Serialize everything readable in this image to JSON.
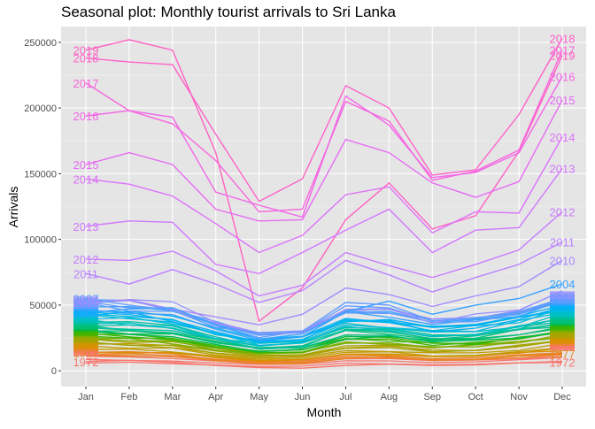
{
  "chart_data": {
    "type": "line",
    "title": "Seasonal plot: Monthly tourist arrivals to Sri Lanka",
    "xlabel": "Month",
    "ylabel": "Arrivals",
    "categories": [
      "Jan",
      "Feb",
      "Mar",
      "Apr",
      "May",
      "Jun",
      "Jul",
      "Aug",
      "Sep",
      "Oct",
      "Nov",
      "Dec"
    ],
    "ylim": [
      -12000,
      262000
    ],
    "yticks": [
      0,
      50000,
      100000,
      150000,
      200000,
      250000
    ],
    "ytick_labels": [
      "0",
      "50000",
      "100000",
      "150000",
      "200000",
      "250000"
    ],
    "background": "#E5E5E5",
    "grid": true,
    "labeled_series": [
      {
        "name": "2019",
        "color": "#FF61C3",
        "values": [
          244000,
          252000,
          244000,
          166000,
          37800,
          63000,
          115000,
          143000,
          108000,
          118000,
          167000,
          240000
        ]
      },
      {
        "name": "2018",
        "color": "#FF61C9",
        "values": [
          238000,
          235000,
          233000,
          180000,
          129000,
          146000,
          217000,
          200000,
          149000,
          153000,
          195000,
          253000
        ]
      },
      {
        "name": "2017",
        "color": "#F865DD",
        "values": [
          219000,
          198000,
          188000,
          160000,
          121000,
          123000,
          205000,
          190000,
          145000,
          152000,
          168000,
          244000
        ]
      },
      {
        "name": "2016",
        "color": "#F265E7",
        "values": [
          194000,
          198000,
          193000,
          136000,
          126000,
          117000,
          209000,
          187000,
          147000,
          151000,
          166000,
          224000
        ]
      },
      {
        "name": "2015",
        "color": "#E76BF3",
        "values": [
          157000,
          166000,
          157000,
          123000,
          114000,
          115000,
          176000,
          166000,
          143000,
          132000,
          144000,
          206000
        ]
      },
      {
        "name": "2014",
        "color": "#DC71FA",
        "values": [
          146000,
          142000,
          133000,
          112000,
          90000,
          103000,
          134000,
          140000,
          105000,
          121000,
          120000,
          178000
        ]
      },
      {
        "name": "2013",
        "color": "#D177FF",
        "values": [
          110000,
          114000,
          113000,
          81000,
          74000,
          90000,
          107000,
          123000,
          90000,
          107000,
          109000,
          154000
        ]
      },
      {
        "name": "2012",
        "color": "#C77CFF",
        "values": [
          85000,
          84000,
          91000,
          76000,
          57000,
          65000,
          90000,
          80000,
          71000,
          81000,
          92000,
          121000
        ]
      },
      {
        "name": "2011",
        "color": "#B983FF",
        "values": [
          74000,
          66000,
          77000,
          66000,
          52000,
          61000,
          84000,
          73000,
          60000,
          71000,
          81000,
          98000
        ]
      },
      {
        "name": "2010",
        "color": "#A58AFF",
        "values": [
          52000,
          54000,
          47000,
          41000,
          35000,
          43000,
          63000,
          58000,
          49000,
          57000,
          64000,
          84000
        ]
      },
      {
        "name": "2004",
        "color": "#35A2FF",
        "values": [
          44000,
          47000,
          48000,
          35000,
          24000,
          28000,
          45000,
          53000,
          43000,
          50000,
          55000,
          66000
        ]
      },
      {
        "name": "2007",
        "color": "#619CFF",
        "values": [
          55000,
          50000,
          46000,
          33000,
          29000,
          30000,
          52000,
          50000,
          38000,
          40000,
          45000,
          55000
        ]
      },
      {
        "name": "1972",
        "color": "#F8766D",
        "values": [
          7000,
          8000,
          6500,
          4000,
          2500,
          2000,
          4000,
          5000,
          4000,
          4500,
          6000,
          6500
        ]
      },
      {
        "name": "1977",
        "color": "#E7851E",
        "values": [
          14000,
          14500,
          13000,
          8000,
          5500,
          5500,
          9500,
          10500,
          8000,
          8500,
          11500,
          13000
        ]
      }
    ],
    "label_color_left_bottom": "#E46E5A"
  }
}
